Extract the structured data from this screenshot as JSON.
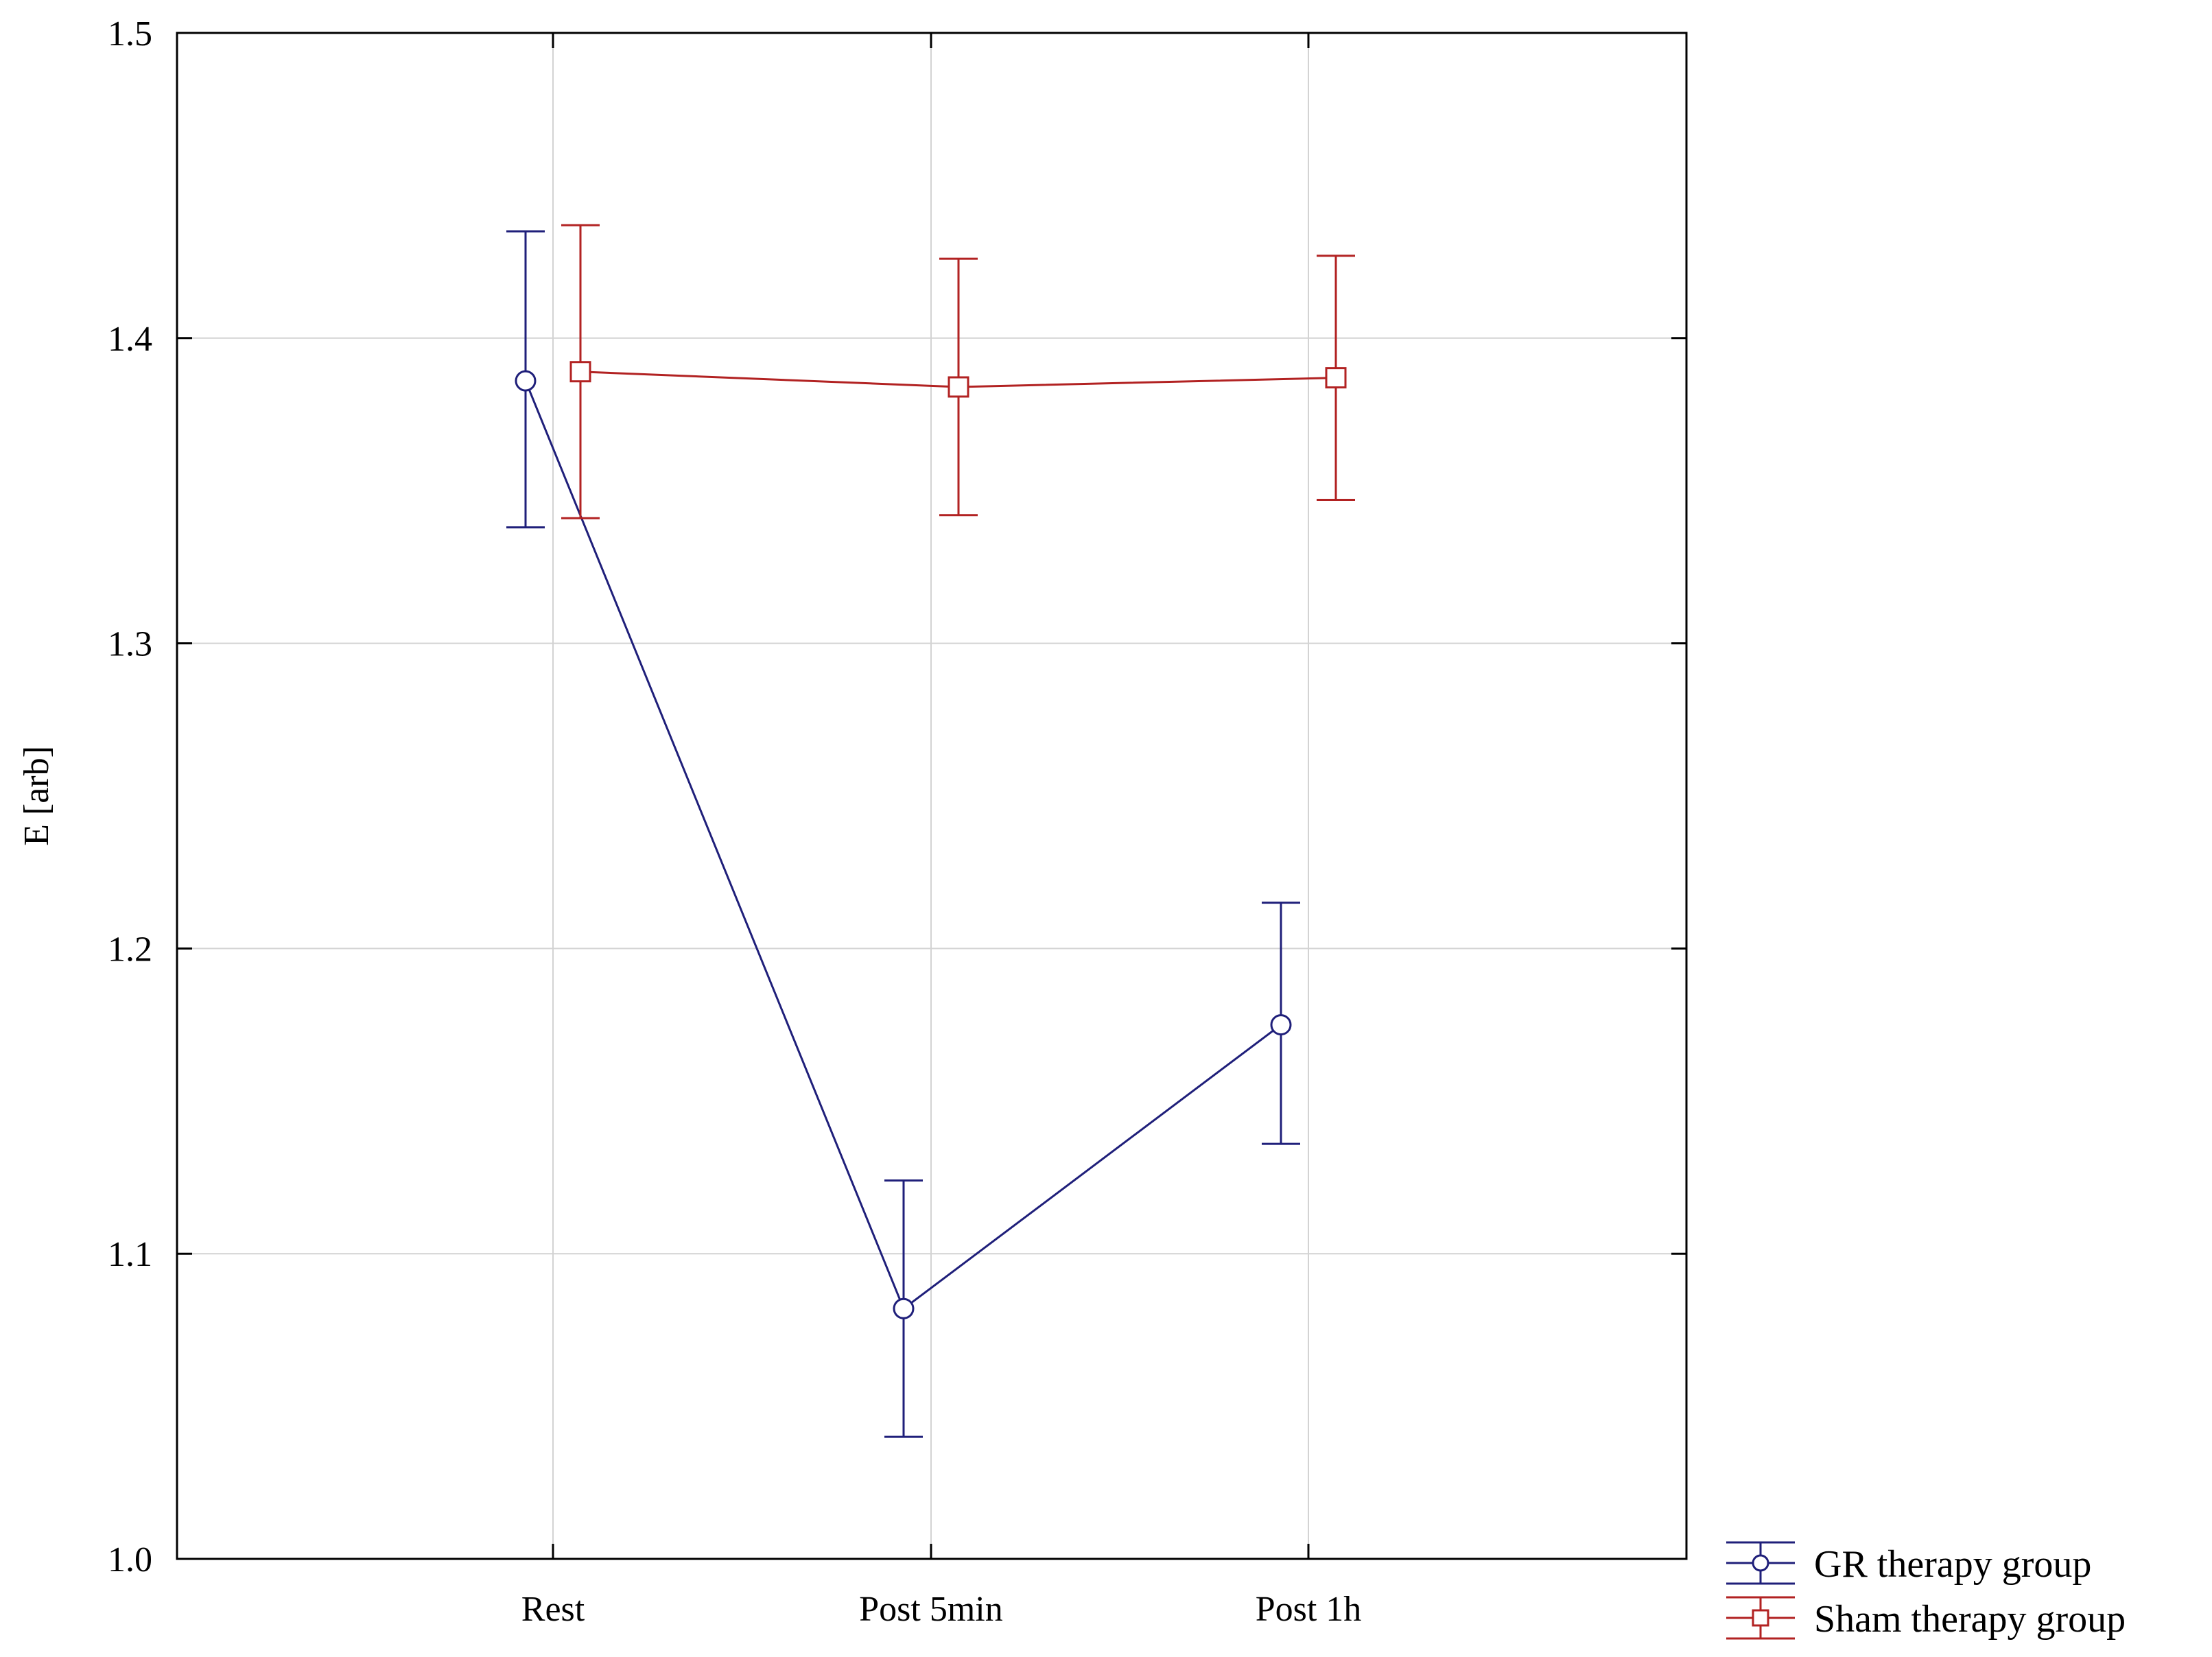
{
  "chart_data": {
    "type": "line",
    "categories": [
      "Rest",
      "Post 5min",
      "Post 1h"
    ],
    "ylabel": "E [arb]",
    "xlabel": "",
    "ylim": [
      1.0,
      1.5
    ],
    "yticks": [
      "1.0",
      "1.1",
      "1.2",
      "1.3",
      "1.4",
      "1.5"
    ],
    "grid": true,
    "legend_position": "bottom-right-outside",
    "series": [
      {
        "name": "GR therapy group",
        "color": "#1f1f7a",
        "marker": "circle",
        "values": [
          1.386,
          1.082,
          1.175
        ],
        "err_low": [
          1.338,
          1.04,
          1.136
        ],
        "err_high": [
          1.435,
          1.124,
          1.215
        ]
      },
      {
        "name": "Sham therapy group",
        "color": "#b22222",
        "marker": "square",
        "values": [
          1.389,
          1.384,
          1.387
        ],
        "err_low": [
          1.341,
          1.342,
          1.347
        ],
        "err_high": [
          1.437,
          1.426,
          1.427
        ]
      }
    ]
  }
}
